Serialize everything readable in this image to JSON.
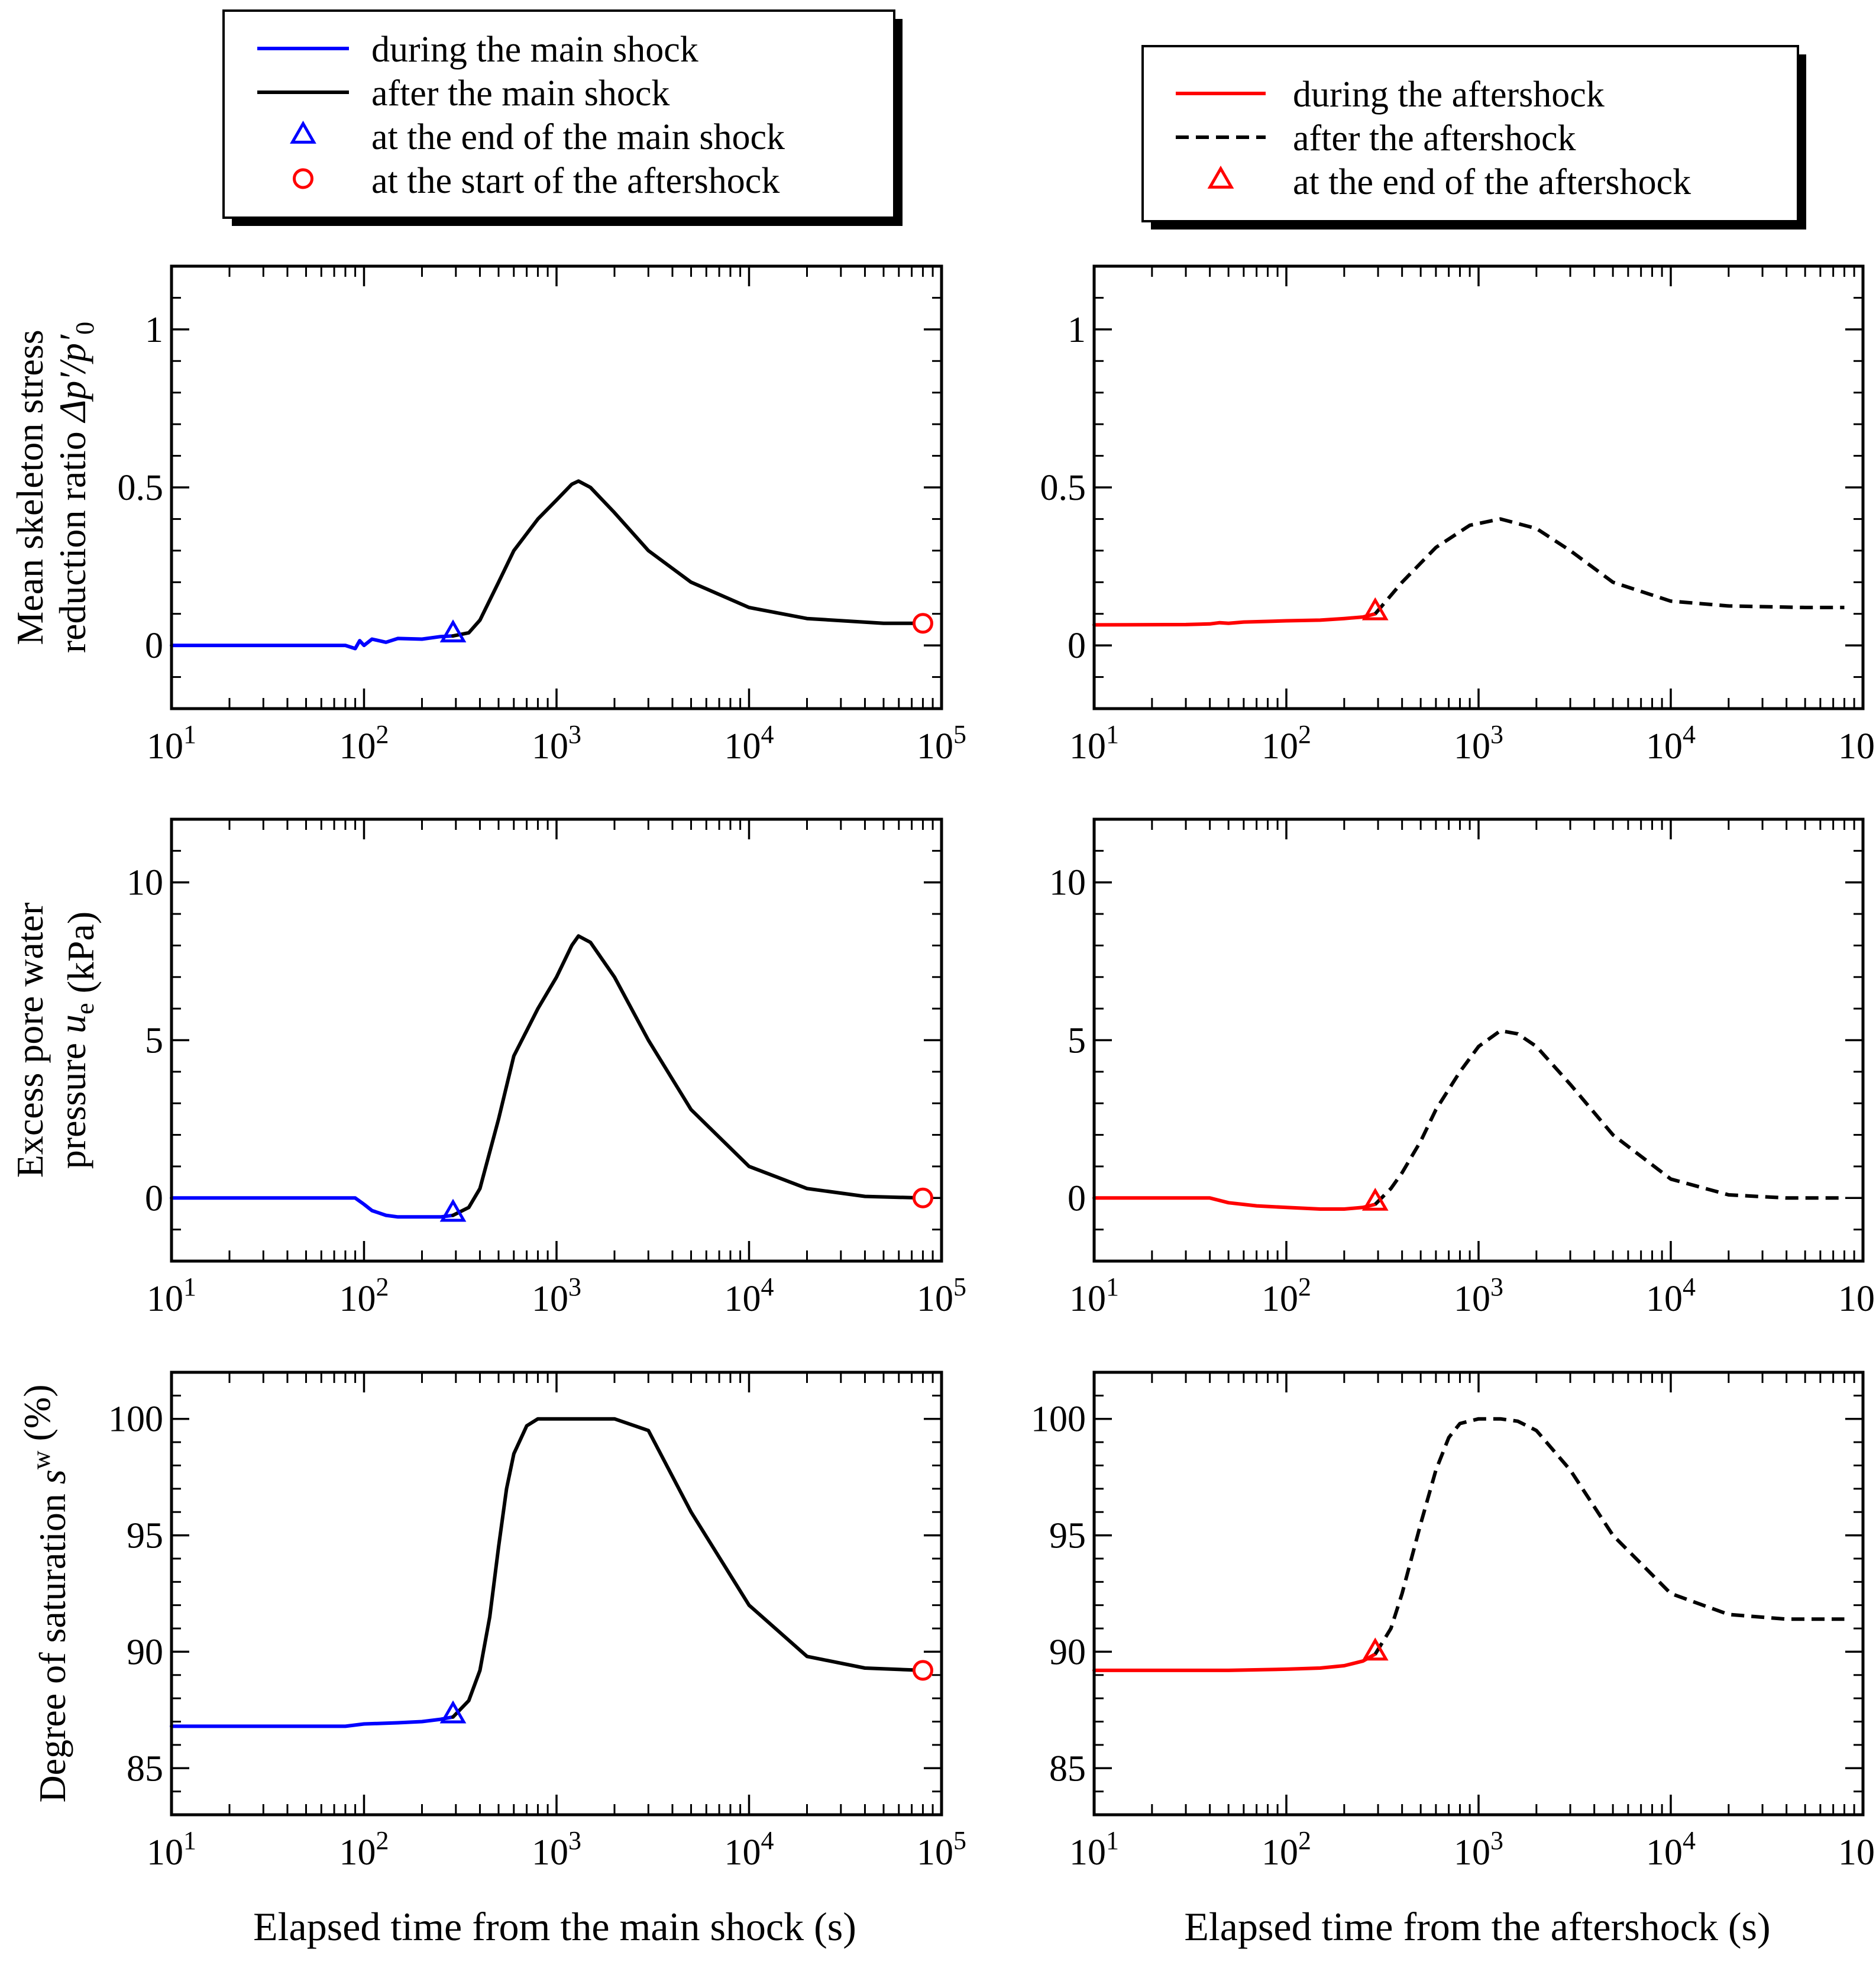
{
  "figure": {
    "xlabel_left": "Elapsed time from the main shock (s)",
    "xlabel_right": "Elapsed time from the aftershock (s)",
    "ylabels": [
      {
        "lines": [
          [
            {
              "t": "Mean skeleton stress",
              "s": "n"
            }
          ],
          [
            {
              "t": "reduction ratio ",
              "s": "n"
            },
            {
              "t": "Δp′/p′",
              "s": "i"
            },
            {
              "t": "0",
              "s": "sub"
            }
          ]
        ]
      },
      {
        "lines": [
          [
            {
              "t": "Excess pore water",
              "s": "n"
            }
          ],
          [
            {
              "t": "pressure ",
              "s": "n"
            },
            {
              "t": "u",
              "s": "i"
            },
            {
              "t": "e",
              "s": "sub"
            },
            {
              "t": " (kPa)",
              "s": "n"
            }
          ]
        ]
      },
      {
        "lines": [
          [
            {
              "t": "Degree of saturation ",
              "s": "n"
            },
            {
              "t": "s",
              "s": "i"
            },
            {
              "t": "w",
              "s": "sup"
            },
            {
              "t": " (%)",
              "s": "n"
            }
          ]
        ]
      }
    ],
    "x_tick_labels": [
      {
        "base": "10",
        "exp": "1"
      },
      {
        "base": "10",
        "exp": "2"
      },
      {
        "base": "10",
        "exp": "3"
      },
      {
        "base": "10",
        "exp": "4"
      },
      {
        "base": "10",
        "exp": "5"
      }
    ]
  },
  "legends": {
    "left": [
      {
        "label": "during the main shock",
        "marker": "line",
        "color": "#0000ff",
        "dash": false
      },
      {
        "label": "after the main shock",
        "marker": "line",
        "color": "#000000",
        "dash": false
      },
      {
        "label": "at the end of the main shock",
        "marker": "triangle",
        "color": "#0000ff"
      },
      {
        "label": "at the start of the aftershock",
        "marker": "circle",
        "color": "#ff0000"
      }
    ],
    "right": [
      {
        "label": "during the aftershock",
        "marker": "line",
        "color": "#ff0000",
        "dash": false
      },
      {
        "label": "after the aftershock",
        "marker": "line",
        "color": "#000000",
        "dash": true
      },
      {
        "label": "at the end of the aftershock",
        "marker": "triangle",
        "color": "#ff0000"
      }
    ]
  },
  "chart_data": [
    {
      "type": "line",
      "panel": "main-shock-stress-ratio",
      "xscale": "log",
      "xlim": [
        10,
        100000
      ],
      "ylim": [
        -0.2,
        1.2
      ],
      "yticks": [
        0,
        0.5,
        1
      ],
      "ytick_labels": [
        "0",
        "0.5",
        "1"
      ],
      "series": [
        {
          "name": "during the main shock",
          "color": "#0000ff",
          "dash": false,
          "x": [
            10,
            20,
            50,
            80,
            90,
            95,
            100,
            110,
            130,
            150,
            200,
            250,
            290
          ],
          "y": [
            0,
            0,
            0,
            0.0,
            -0.01,
            0.015,
            0.0,
            0.02,
            0.01,
            0.022,
            0.02,
            0.028,
            0.03
          ]
        },
        {
          "name": "after the main shock",
          "color": "#000000",
          "dash": false,
          "x": [
            290,
            350,
            400,
            500,
            600,
            800,
            1000,
            1200,
            1300,
            1500,
            2000,
            3000,
            5000,
            10000,
            20000,
            50000,
            80000
          ],
          "y": [
            0.03,
            0.04,
            0.08,
            0.2,
            0.3,
            0.4,
            0.46,
            0.51,
            0.52,
            0.5,
            0.42,
            0.3,
            0.2,
            0.12,
            0.085,
            0.07,
            0.07
          ]
        }
      ],
      "markers": [
        {
          "name": "at the end of the main shock",
          "shape": "triangle",
          "color": "#0000ff",
          "x": 290,
          "y": 0.03
        },
        {
          "name": "at the start of the aftershock",
          "shape": "circle",
          "color": "#ff0000",
          "x": 80000,
          "y": 0.07
        }
      ]
    },
    {
      "type": "line",
      "panel": "aftershock-stress-ratio",
      "xscale": "log",
      "xlim": [
        10,
        100000
      ],
      "ylim": [
        -0.2,
        1.2
      ],
      "yticks": [
        0,
        0.5,
        1
      ],
      "ytick_labels": [
        "0",
        "0.5",
        "1"
      ],
      "series": [
        {
          "name": "during the aftershock",
          "color": "#ff0000",
          "dash": false,
          "x": [
            10,
            30,
            40,
            45,
            50,
            60,
            80,
            100,
            150,
            200,
            250,
            290
          ],
          "y": [
            0.065,
            0.066,
            0.068,
            0.072,
            0.07,
            0.074,
            0.076,
            0.078,
            0.08,
            0.085,
            0.09,
            0.1
          ]
        },
        {
          "name": "after the aftershock",
          "color": "#000000",
          "dash": true,
          "x": [
            290,
            400,
            600,
            900,
            1300,
            2000,
            3000,
            5000,
            10000,
            20000,
            50000,
            80000
          ],
          "y": [
            0.1,
            0.2,
            0.31,
            0.38,
            0.4,
            0.37,
            0.3,
            0.2,
            0.14,
            0.125,
            0.12,
            0.12
          ]
        }
      ],
      "markers": [
        {
          "name": "at the end of the aftershock",
          "shape": "triangle",
          "color": "#ff0000",
          "x": 290,
          "y": 0.1
        }
      ]
    },
    {
      "type": "line",
      "panel": "main-shock-pore-pressure",
      "xscale": "log",
      "xlim": [
        10,
        100000
      ],
      "ylim": [
        -2,
        12
      ],
      "yticks": [
        0,
        5,
        10
      ],
      "ytick_labels": [
        "0",
        "5",
        "10"
      ],
      "series": [
        {
          "name": "during the main shock",
          "color": "#0000ff",
          "dash": false,
          "x": [
            10,
            50,
            90,
            100,
            110,
            130,
            150,
            200,
            250,
            290
          ],
          "y": [
            0,
            0,
            0,
            -0.2,
            -0.4,
            -0.55,
            -0.6,
            -0.6,
            -0.6,
            -0.55
          ]
        },
        {
          "name": "after the main shock",
          "color": "#000000",
          "dash": false,
          "x": [
            290,
            350,
            400,
            500,
            600,
            800,
            1000,
            1200,
            1300,
            1500,
            2000,
            3000,
            5000,
            10000,
            20000,
            40000,
            80000
          ],
          "y": [
            -0.55,
            -0.3,
            0.3,
            2.5,
            4.5,
            6.0,
            7.0,
            8.0,
            8.3,
            8.1,
            7.0,
            5.0,
            2.8,
            1.0,
            0.3,
            0.05,
            0.0
          ]
        }
      ],
      "markers": [
        {
          "name": "at the end of the main shock",
          "shape": "triangle",
          "color": "#0000ff",
          "x": 290,
          "y": -0.55
        },
        {
          "name": "at the start of the aftershock",
          "shape": "circle",
          "color": "#ff0000",
          "x": 80000,
          "y": 0.0
        }
      ]
    },
    {
      "type": "line",
      "panel": "aftershock-pore-pressure",
      "xscale": "log",
      "xlim": [
        10,
        100000
      ],
      "ylim": [
        -2,
        12
      ],
      "yticks": [
        0,
        5,
        10
      ],
      "ytick_labels": [
        "0",
        "5",
        "10"
      ],
      "series": [
        {
          "name": "during the aftershock",
          "color": "#ff0000",
          "dash": false,
          "x": [
            10,
            30,
            40,
            50,
            70,
            100,
            150,
            200,
            250,
            290
          ],
          "y": [
            0,
            0,
            0,
            -0.15,
            -0.25,
            -0.3,
            -0.35,
            -0.35,
            -0.3,
            -0.2
          ]
        },
        {
          "name": "after the aftershock",
          "color": "#000000",
          "dash": true,
          "x": [
            290,
            350,
            400,
            500,
            600,
            800,
            1000,
            1300,
            1600,
            2000,
            3000,
            5000,
            10000,
            20000,
            40000,
            80000
          ],
          "y": [
            -0.2,
            0.3,
            0.8,
            1.8,
            2.8,
            4.0,
            4.8,
            5.3,
            5.2,
            4.8,
            3.6,
            2.0,
            0.6,
            0.1,
            0.0,
            0.0
          ]
        }
      ],
      "markers": [
        {
          "name": "at the end of the aftershock",
          "shape": "triangle",
          "color": "#ff0000",
          "x": 290,
          "y": -0.2
        }
      ]
    },
    {
      "type": "line",
      "panel": "main-shock-saturation",
      "xscale": "log",
      "xlim": [
        10,
        100000
      ],
      "ylim": [
        83,
        102
      ],
      "yticks": [
        85,
        90,
        95,
        100
      ],
      "ytick_labels": [
        "85",
        "90",
        "95",
        "100"
      ],
      "series": [
        {
          "name": "during the main shock",
          "color": "#0000ff",
          "dash": false,
          "x": [
            10,
            50,
            80,
            100,
            150,
            200,
            250,
            290
          ],
          "y": [
            86.8,
            86.8,
            86.8,
            86.9,
            86.95,
            87.0,
            87.1,
            87.2
          ]
        },
        {
          "name": "after the main shock",
          "color": "#000000",
          "dash": false,
          "x": [
            290,
            350,
            400,
            450,
            500,
            550,
            600,
            700,
            800,
            900,
            1000,
            2000,
            3000,
            5000,
            10000,
            20000,
            40000,
            80000
          ],
          "y": [
            87.2,
            87.9,
            89.2,
            91.5,
            94.5,
            97.0,
            98.5,
            99.7,
            100,
            100,
            100,
            100,
            99.5,
            96.0,
            92.0,
            89.8,
            89.3,
            89.2
          ]
        }
      ],
      "markers": [
        {
          "name": "at the end of the main shock",
          "shape": "triangle",
          "color": "#0000ff",
          "x": 290,
          "y": 87.2
        },
        {
          "name": "at the start of the aftershock",
          "shape": "circle",
          "color": "#ff0000",
          "x": 80000,
          "y": 89.2
        }
      ]
    },
    {
      "type": "line",
      "panel": "aftershock-saturation",
      "xscale": "log",
      "xlim": [
        10,
        100000
      ],
      "ylim": [
        83,
        102
      ],
      "yticks": [
        85,
        90,
        95,
        100
      ],
      "ytick_labels": [
        "85",
        "90",
        "95",
        "100"
      ],
      "series": [
        {
          "name": "during the aftershock",
          "color": "#ff0000",
          "dash": false,
          "x": [
            10,
            30,
            50,
            100,
            150,
            200,
            250,
            290
          ],
          "y": [
            89.2,
            89.2,
            89.2,
            89.25,
            89.3,
            89.4,
            89.6,
            89.9
          ]
        },
        {
          "name": "after the aftershock",
          "color": "#000000",
          "dash": true,
          "x": [
            290,
            350,
            400,
            500,
            600,
            700,
            800,
            1000,
            1300,
            1600,
            2000,
            3000,
            5000,
            10000,
            20000,
            40000,
            80000
          ],
          "y": [
            89.9,
            91.0,
            92.5,
            95.5,
            97.8,
            99.2,
            99.8,
            100,
            100,
            99.9,
            99.5,
            97.8,
            95.0,
            92.5,
            91.6,
            91.4,
            91.4
          ]
        }
      ],
      "markers": [
        {
          "name": "at the end of the aftershock",
          "shape": "triangle",
          "color": "#ff0000",
          "x": 290,
          "y": 89.9
        }
      ]
    }
  ]
}
